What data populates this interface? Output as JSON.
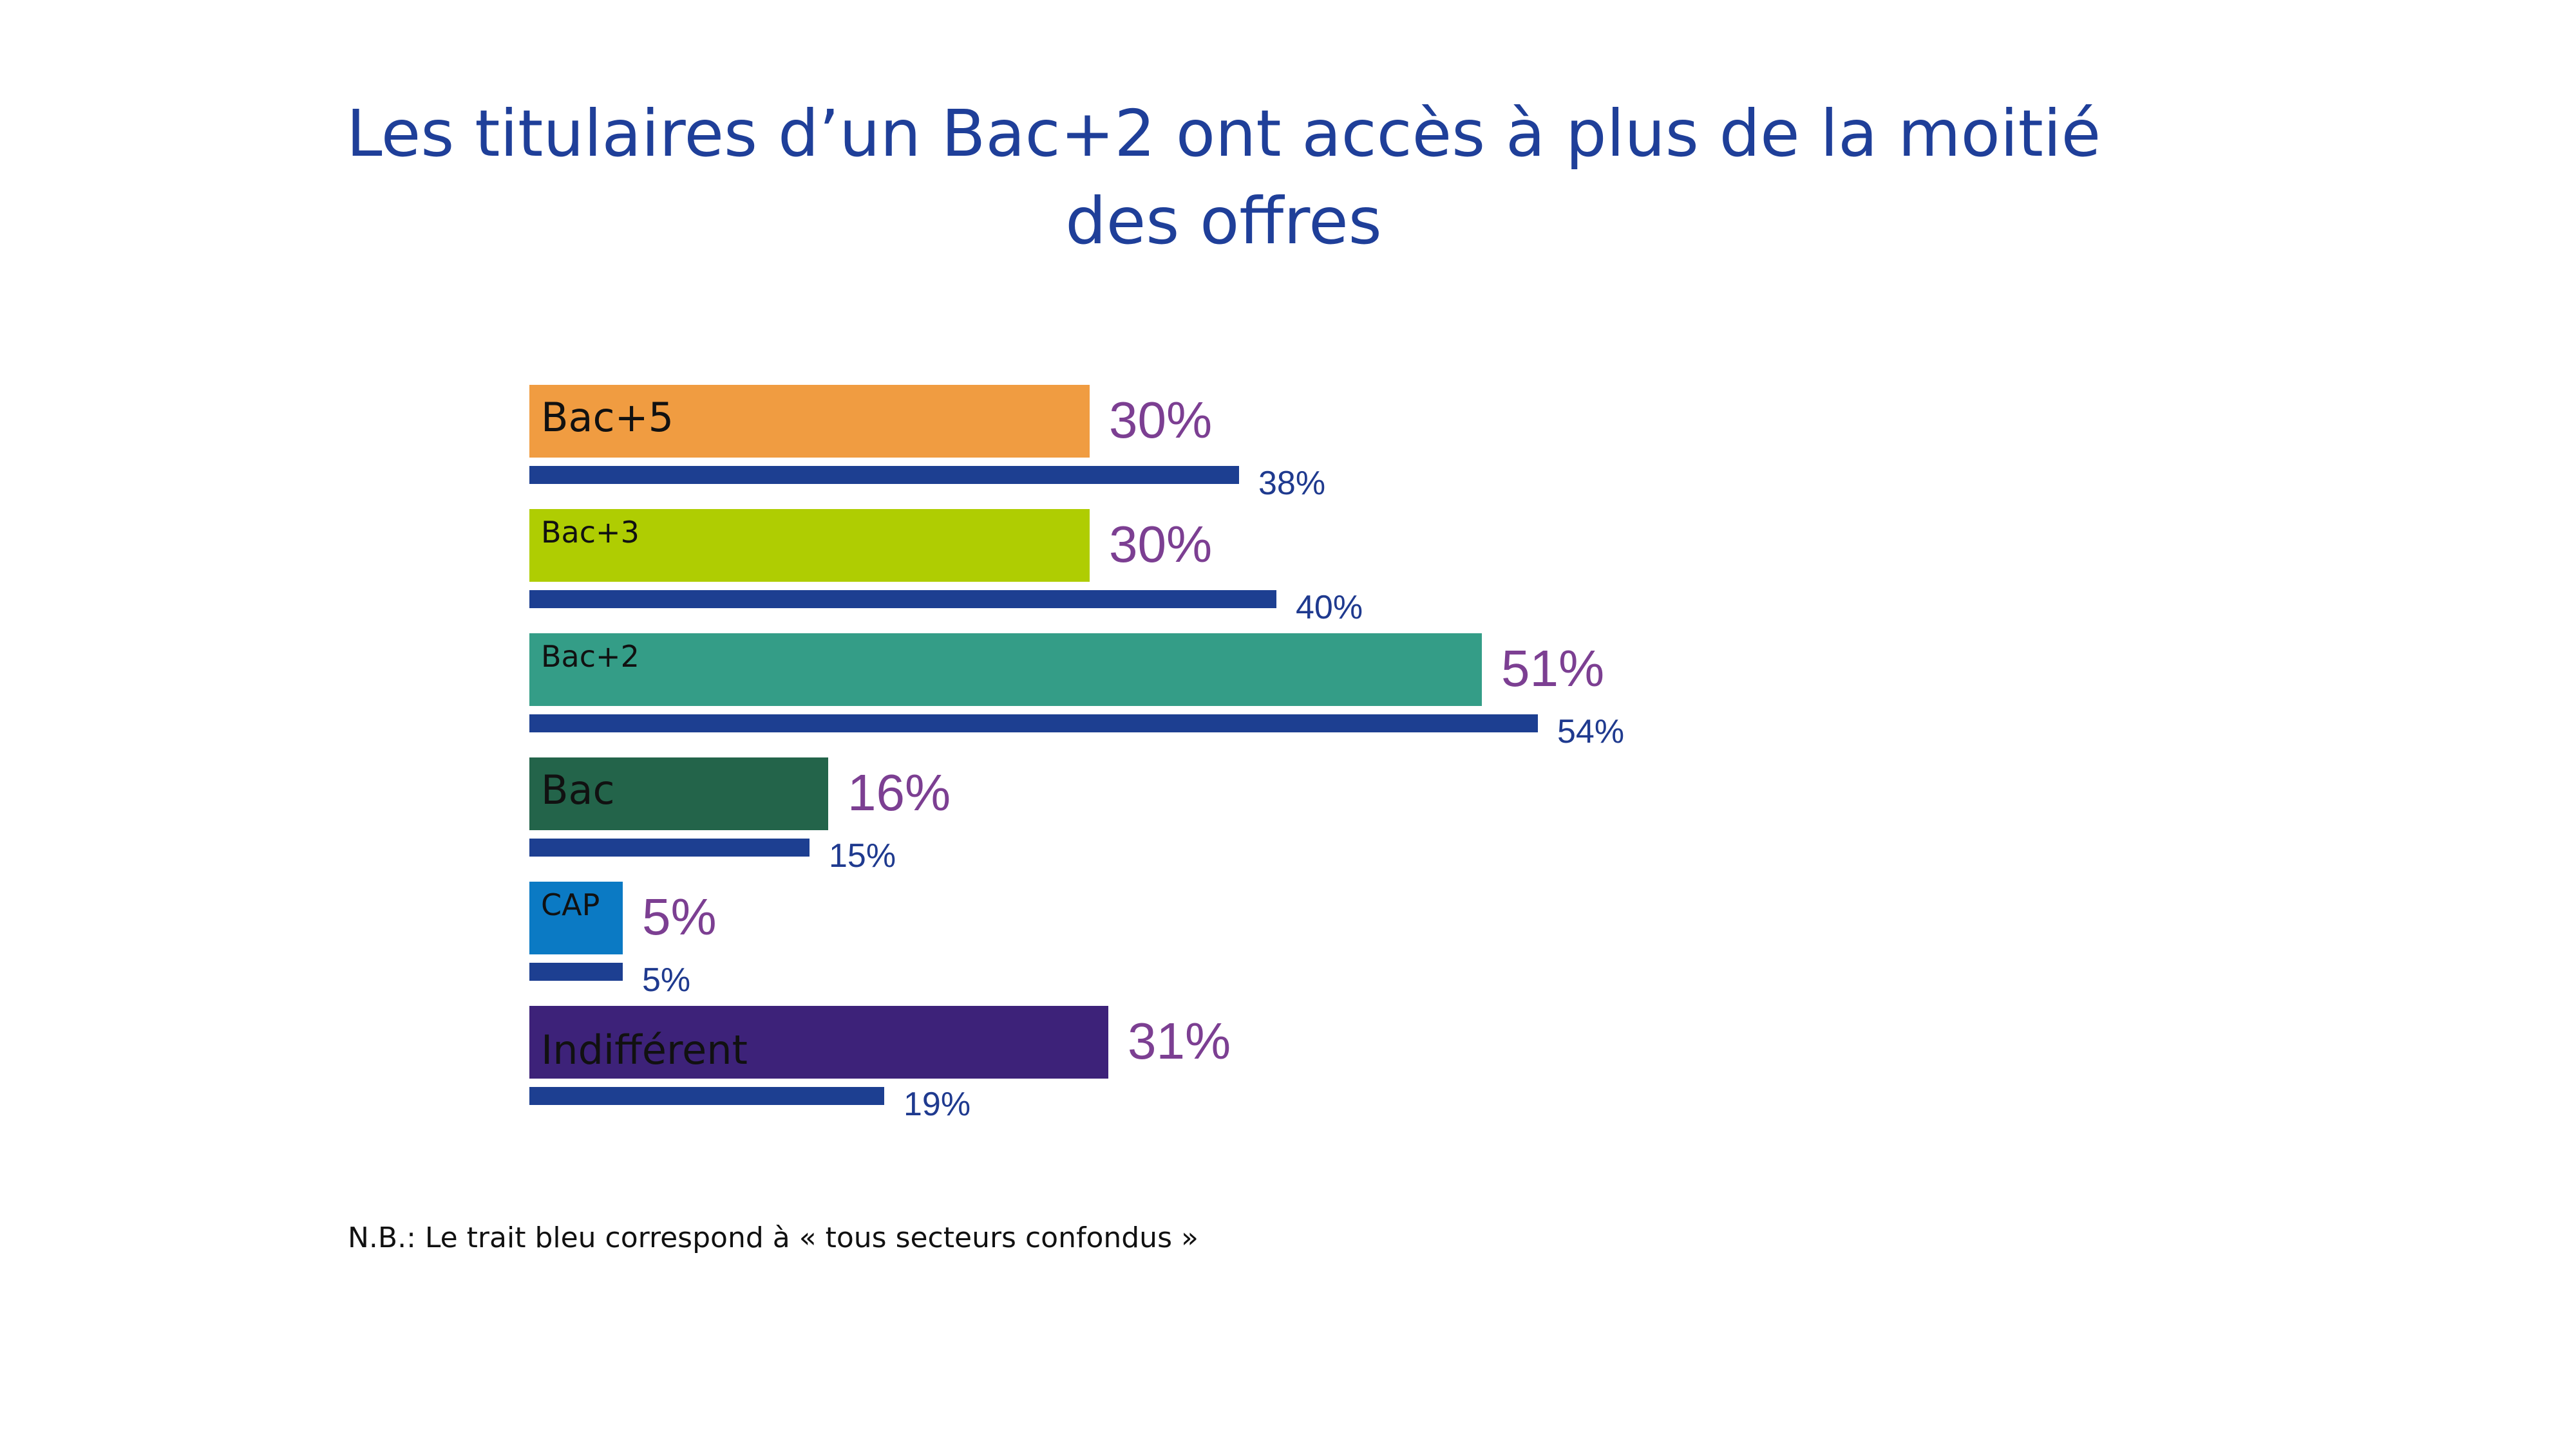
{
  "title": "Les titulaires d’un Bac+2 ont accès à plus de la moitié des offres",
  "footnote": "N.B.: Le trait bleu correspond à « tous secteurs confondus »",
  "chart_data": {
    "type": "bar",
    "orientation": "horizontal",
    "categories": [
      "Bac+5",
      "Bac+3",
      "Bac+2",
      "Bac",
      "CAP",
      "Indifférent"
    ],
    "series": [
      {
        "values": [
          30,
          30,
          51,
          16,
          5,
          31
        ],
        "unit": "%"
      },
      {
        "values": [
          38,
          40,
          54,
          15,
          5,
          19
        ],
        "unit": "%"
      }
    ],
    "category_colors": [
      "#f09c41",
      "#afcd02",
      "#349d87",
      "#23644a",
      "#0b7ac4",
      "#3d2279"
    ],
    "category_label_size": [
      "large",
      "small",
      "small",
      "large",
      "small",
      "large"
    ],
    "comparison_color": "#1d3f91",
    "value_label_color_main": "#7c3f92",
    "value_label_color_comparison": "#1f3a8f",
    "grid": false,
    "legend": "none"
  }
}
